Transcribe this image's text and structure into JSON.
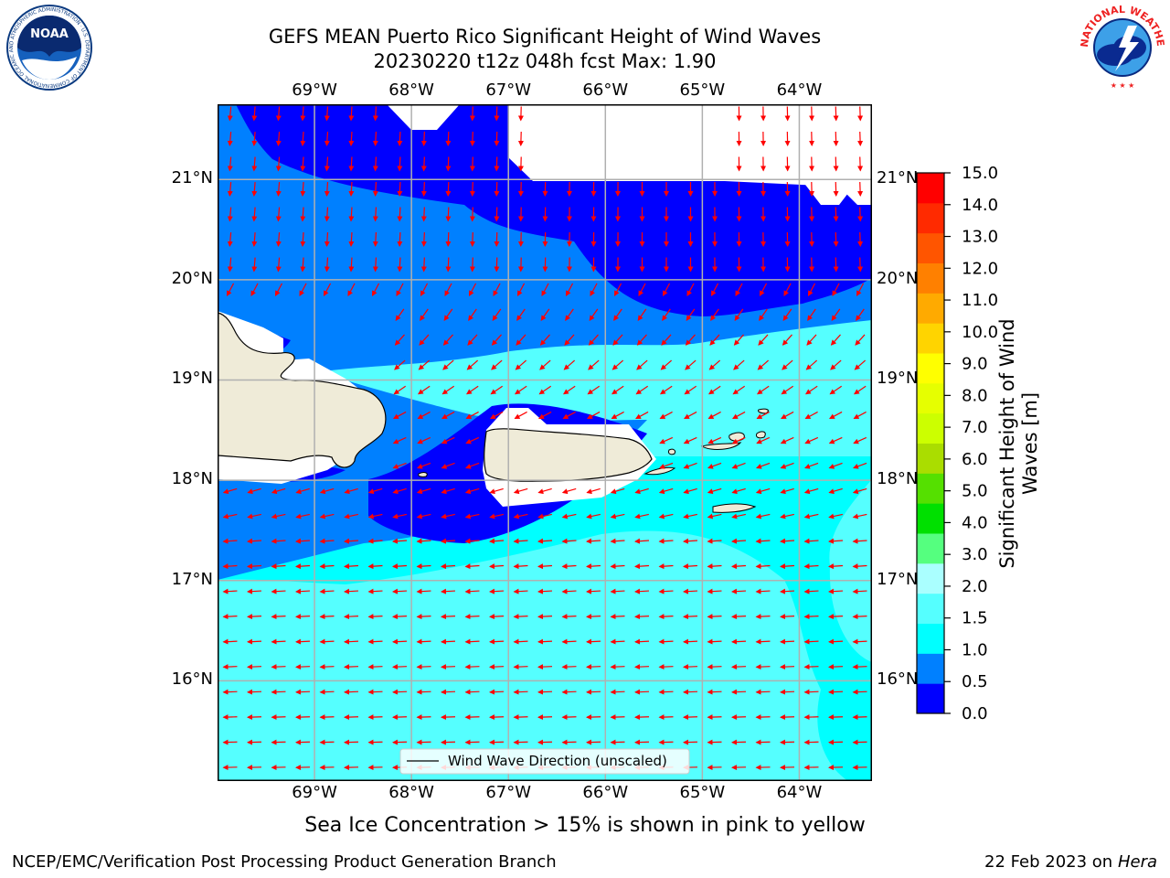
{
  "header": {
    "title_line1": "GEFS MEAN Puerto Rico Significant Height of Wind Waves",
    "title_line2": "20230220 t12z 048h fcst   Max: 1.90"
  },
  "logos": {
    "left": "noaa-logo",
    "left_text": "NOAA",
    "left_ring_text": "NATIONAL OCEANIC AND ATMOSPHERIC ADMINISTRATION · U.S. DEPARTMENT OF COMMERCE",
    "right": "national-weather-service-logo",
    "right_ring_text": "NATIONAL WEATHER SERVICE"
  },
  "map": {
    "lon_labels": [
      "69°W",
      "68°W",
      "67°W",
      "66°W",
      "65°W",
      "64°W"
    ],
    "lon_values": [
      -69,
      -68,
      -67,
      -66,
      -65,
      -64
    ],
    "lat_labels": [
      "21°N",
      "20°N",
      "19°N",
      "18°N",
      "17°N",
      "16°N"
    ],
    "lat_values": [
      21,
      20,
      19,
      18,
      17,
      16
    ],
    "extent": {
      "lon_min": -70.0,
      "lon_max": -63.25,
      "lat_min": 15.0,
      "lat_max": 21.75
    },
    "legend_label": "Wind Wave Direction (unscaled)",
    "colors": {
      "land": "#efebd8",
      "arrow": "#ff0000",
      "grid": "#b0b0b0"
    }
  },
  "colorbar": {
    "title": "Significant Height of Wind Waves [m]",
    "title_line1": "Significant Height of Wind",
    "title_line2": "Waves [m]",
    "tick_labels": [
      "0.0",
      "0.5",
      "1.0",
      "1.5",
      "2.0",
      "3.0",
      "4.0",
      "5.0",
      "6.0",
      "7.0",
      "8.0",
      "9.0",
      "10.0",
      "11.0",
      "12.0",
      "13.0",
      "14.0",
      "15.0"
    ],
    "colors": [
      "#0000ff",
      "#0080ff",
      "#00ffff",
      "#55ffff",
      "#aaffff",
      "#55ff7f",
      "#00e000",
      "#55e000",
      "#aadd00",
      "#ccff00",
      "#e6ff00",
      "#ffff00",
      "#ffd400",
      "#ffaa00",
      "#ff8000",
      "#ff5500",
      "#ff2a00",
      "#ff0000"
    ]
  },
  "footer": {
    "subtitle": "Sea Ice Concentration > 15% is shown in pink to yellow",
    "credit": "NCEP/EMC/Verification Post Processing Product Generation Branch",
    "date": "22 Feb 2023 on",
    "host": "Hera"
  }
}
